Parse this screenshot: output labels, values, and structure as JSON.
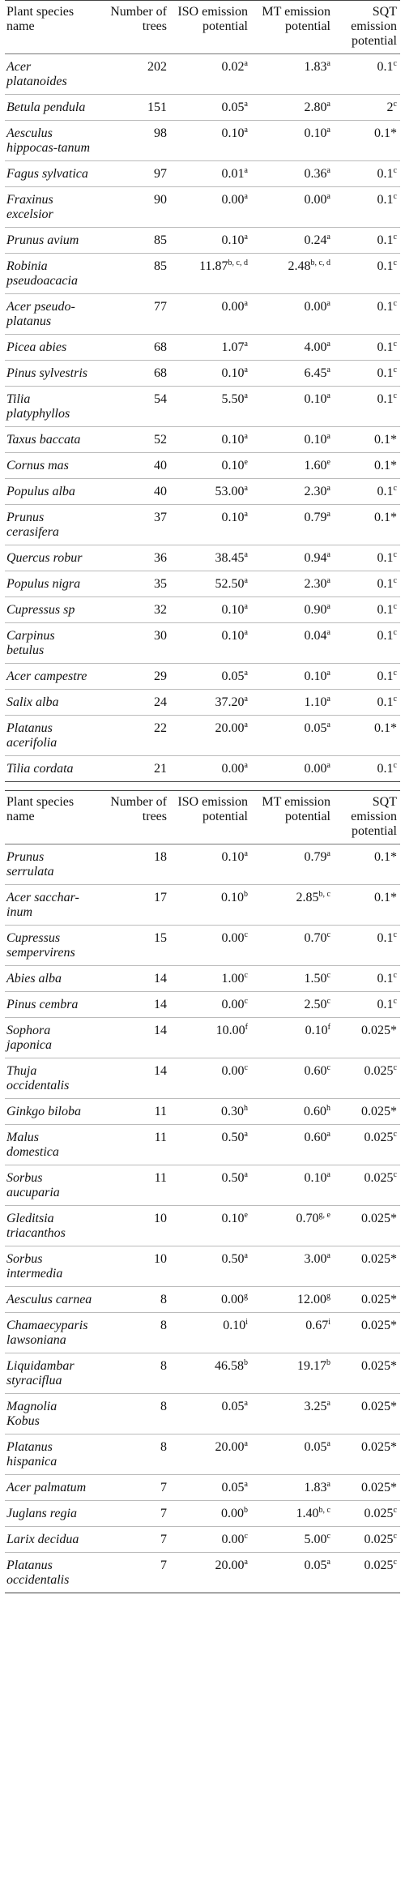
{
  "tables": [
    {
      "header": [
        "Plant species name",
        "Number of trees",
        "ISO emission potential",
        "MT emission potential",
        "SQT emission potential"
      ],
      "rows": [
        {
          "species": "Acer platanoides",
          "trees": "202",
          "iso": {
            "v": "0.02",
            "sup": "a"
          },
          "mt": {
            "v": "1.83",
            "sup": "a"
          },
          "sqt": {
            "v": "0.1",
            "sup": "c"
          }
        },
        {
          "species": "Betula pendula",
          "trees": "151",
          "iso": {
            "v": "0.05",
            "sup": "a"
          },
          "mt": {
            "v": "2.80",
            "sup": "a"
          },
          "sqt": {
            "v": "2",
            "sup": "c"
          }
        },
        {
          "species": "Aesculus hippocas-tanum",
          "trees": "98",
          "iso": {
            "v": "0.10",
            "sup": "a"
          },
          "mt": {
            "v": "0.10",
            "sup": "a"
          },
          "sqt": {
            "v": "0.1*"
          }
        },
        {
          "species": "Fagus sylvatica",
          "trees": "97",
          "iso": {
            "v": "0.01",
            "sup": "a"
          },
          "mt": {
            "v": "0.36",
            "sup": "a"
          },
          "sqt": {
            "v": "0.1",
            "sup": "c"
          }
        },
        {
          "species": "Fraxinus excelsior",
          "trees": "90",
          "iso": {
            "v": "0.00",
            "sup": "a"
          },
          "mt": {
            "v": "0.00",
            "sup": "a"
          },
          "sqt": {
            "v": "0.1",
            "sup": "c"
          }
        },
        {
          "species": "Prunus avium",
          "trees": "85",
          "iso": {
            "v": "0.10",
            "sup": "a"
          },
          "mt": {
            "v": "0.24",
            "sup": "a"
          },
          "sqt": {
            "v": "0.1",
            "sup": "c"
          }
        },
        {
          "species": "Robinia pseudoacacia",
          "trees": "85",
          "iso": {
            "v": "11.87",
            "sup": "b, c, d"
          },
          "mt": {
            "v": "2.48",
            "sup": "b, c, d"
          },
          "sqt": {
            "v": "0.1",
            "sup": "c"
          }
        },
        {
          "species": "Acer pseudo-platanus",
          "trees": "77",
          "iso": {
            "v": "0.00",
            "sup": "a"
          },
          "mt": {
            "v": "0.00",
            "sup": "a"
          },
          "sqt": {
            "v": "0.1",
            "sup": "c"
          }
        },
        {
          "species": "Picea abies",
          "trees": "68",
          "iso": {
            "v": "1.07",
            "sup": "a"
          },
          "mt": {
            "v": "4.00",
            "sup": "a"
          },
          "sqt": {
            "v": "0.1",
            "sup": "c"
          }
        },
        {
          "species": "Pinus sylvestris",
          "trees": "68",
          "iso": {
            "v": "0.10",
            "sup": "a"
          },
          "mt": {
            "v": "6.45",
            "sup": "a"
          },
          "sqt": {
            "v": "0.1",
            "sup": "c"
          }
        },
        {
          "species": "Tilia platyphyllos",
          "trees": "54",
          "iso": {
            "v": "5.50",
            "sup": "a"
          },
          "mt": {
            "v": "0.10",
            "sup": "a"
          },
          "sqt": {
            "v": "0.1",
            "sup": "c"
          }
        },
        {
          "species": "Taxus baccata",
          "trees": "52",
          "iso": {
            "v": "0.10",
            "sup": "a"
          },
          "mt": {
            "v": "0.10",
            "sup": "a"
          },
          "sqt": {
            "v": "0.1*"
          }
        },
        {
          "species": "Cornus mas",
          "trees": "40",
          "iso": {
            "v": "0.10",
            "sup": "e"
          },
          "mt": {
            "v": "1.60",
            "sup": "e"
          },
          "sqt": {
            "v": "0.1*"
          }
        },
        {
          "species": "Populus alba",
          "trees": "40",
          "iso": {
            "v": "53.00",
            "sup": "a"
          },
          "mt": {
            "v": "2.30",
            "sup": "a"
          },
          "sqt": {
            "v": "0.1",
            "sup": "c"
          }
        },
        {
          "species": "Prunus cerasifera",
          "trees": "37",
          "iso": {
            "v": "0.10",
            "sup": "a"
          },
          "mt": {
            "v": "0.79",
            "sup": "a"
          },
          "sqt": {
            "v": "0.1*"
          }
        },
        {
          "species": "Quercus robur",
          "trees": "36",
          "iso": {
            "v": "38.45",
            "sup": "a"
          },
          "mt": {
            "v": "0.94",
            "sup": "a"
          },
          "sqt": {
            "v": "0.1",
            "sup": "c"
          }
        },
        {
          "species": "Populus nigra",
          "trees": "35",
          "iso": {
            "v": "52.50",
            "sup": "a"
          },
          "mt": {
            "v": "2.30",
            "sup": "a"
          },
          "sqt": {
            "v": "0.1",
            "sup": "c"
          }
        },
        {
          "species": "Cupressus sp",
          "trees": "32",
          "iso": {
            "v": "0.10",
            "sup": "a"
          },
          "mt": {
            "v": "0.90",
            "sup": "a"
          },
          "sqt": {
            "v": "0.1",
            "sup": "c"
          }
        },
        {
          "species": "Carpinus betulus",
          "trees": "30",
          "iso": {
            "v": "0.10",
            "sup": "a"
          },
          "mt": {
            "v": "0.04",
            "sup": "a"
          },
          "sqt": {
            "v": "0.1",
            "sup": "c"
          }
        },
        {
          "species": "Acer campestre",
          "trees": "29",
          "iso": {
            "v": "0.05",
            "sup": "a"
          },
          "mt": {
            "v": "0.10",
            "sup": "a"
          },
          "sqt": {
            "v": "0.1",
            "sup": "c"
          }
        },
        {
          "species": "Salix alba",
          "trees": "24",
          "iso": {
            "v": "37.20",
            "sup": "a"
          },
          "mt": {
            "v": "1.10",
            "sup": "a"
          },
          "sqt": {
            "v": "0.1",
            "sup": "c"
          }
        },
        {
          "species": "Platanus acerifolia",
          "trees": "22",
          "iso": {
            "v": "20.00",
            "sup": "a"
          },
          "mt": {
            "v": "0.05",
            "sup": "a"
          },
          "sqt": {
            "v": "0.1*"
          }
        },
        {
          "species": "Tilia cordata",
          "trees": "21",
          "iso": {
            "v": "0.00",
            "sup": "a"
          },
          "mt": {
            "v": "0.00",
            "sup": "a"
          },
          "sqt": {
            "v": "0.1",
            "sup": "c"
          }
        }
      ]
    },
    {
      "header": [
        "Plant species name",
        "Number of trees",
        "ISO emission potential",
        "MT emission potential",
        "SQT emission potential"
      ],
      "rows": [
        {
          "species": "Prunus serrulata",
          "trees": "18",
          "iso": {
            "v": "0.10",
            "sup": "a"
          },
          "mt": {
            "v": "0.79",
            "sup": "a"
          },
          "sqt": {
            "v": "0.1*"
          }
        },
        {
          "species": "Acer sacchar-inum",
          "trees": "17",
          "iso": {
            "v": "0.10",
            "sup": "b"
          },
          "mt": {
            "v": "2.85",
            "sup": "b, c"
          },
          "sqt": {
            "v": "0.1*"
          }
        },
        {
          "species": "Cupressus sempervirens",
          "trees": "15",
          "iso": {
            "v": "0.00",
            "sup": "c"
          },
          "mt": {
            "v": "0.70",
            "sup": "c"
          },
          "sqt": {
            "v": "0.1",
            "sup": "c"
          }
        },
        {
          "species": "Abies alba",
          "trees": "14",
          "iso": {
            "v": "1.00",
            "sup": "c"
          },
          "mt": {
            "v": "1.50",
            "sup": "c"
          },
          "sqt": {
            "v": "0.1",
            "sup": "c"
          }
        },
        {
          "species": "Pinus cembra",
          "trees": "14",
          "iso": {
            "v": "0.00",
            "sup": "c"
          },
          "mt": {
            "v": "2.50",
            "sup": "c"
          },
          "sqt": {
            "v": "0.1",
            "sup": "c"
          }
        },
        {
          "species": "Sophora japonica",
          "trees": "14",
          "iso": {
            "v": "10.00",
            "sup": "f"
          },
          "mt": {
            "v": "0.10",
            "sup": "f"
          },
          "sqt": {
            "v": "0.025*"
          }
        },
        {
          "species": "Thuja occidentalis",
          "trees": "14",
          "iso": {
            "v": "0.00",
            "sup": "c"
          },
          "mt": {
            "v": "0.60",
            "sup": "c"
          },
          "sqt": {
            "v": "0.025",
            "sup": "c"
          }
        },
        {
          "species": "Ginkgo biloba",
          "trees": "11",
          "iso": {
            "v": "0.30",
            "sup": "h"
          },
          "mt": {
            "v": "0.60",
            "sup": "h"
          },
          "sqt": {
            "v": "0.025*"
          }
        },
        {
          "species": "Malus domestica",
          "trees": "11",
          "iso": {
            "v": "0.50",
            "sup": "a"
          },
          "mt": {
            "v": "0.60",
            "sup": "a"
          },
          "sqt": {
            "v": "0.025",
            "sup": "c"
          }
        },
        {
          "species": "Sorbus aucuparia",
          "trees": "11",
          "iso": {
            "v": "0.50",
            "sup": "a"
          },
          "mt": {
            "v": "0.10",
            "sup": "a"
          },
          "sqt": {
            "v": "0.025",
            "sup": "c"
          }
        },
        {
          "species": "Gleditsia triacanthos",
          "trees": "10",
          "iso": {
            "v": "0.10",
            "sup": "e"
          },
          "mt": {
            "v": "0.70",
            "sup": "g, e"
          },
          "sqt": {
            "v": "0.025*"
          }
        },
        {
          "species": "Sorbus intermedia",
          "trees": "10",
          "iso": {
            "v": "0.50",
            "sup": "a"
          },
          "mt": {
            "v": "3.00",
            "sup": "a"
          },
          "sqt": {
            "v": "0.025*"
          }
        },
        {
          "species": "Aesculus carnea",
          "trees": "8",
          "iso": {
            "v": "0.00",
            "sup": "g"
          },
          "mt": {
            "v": "12.00",
            "sup": "g"
          },
          "sqt": {
            "v": "0.025*"
          }
        },
        {
          "species": "Chamaecyparis lawsoniana",
          "trees": "8",
          "iso": {
            "v": "0.10",
            "sup": "i"
          },
          "mt": {
            "v": "0.67",
            "sup": "i"
          },
          "sqt": {
            "v": "0.025*"
          }
        },
        {
          "species": "Liquidambar styraciflua",
          "trees": "8",
          "iso": {
            "v": "46.58",
            "sup": "b"
          },
          "mt": {
            "v": "19.17",
            "sup": "b"
          },
          "sqt": {
            "v": "0.025*"
          }
        },
        {
          "species": "Magnolia Kobus",
          "trees": "8",
          "iso": {
            "v": "0.05",
            "sup": "a"
          },
          "mt": {
            "v": "3.25",
            "sup": "a"
          },
          "sqt": {
            "v": "0.025*"
          }
        },
        {
          "species": "Platanus hispanica",
          "trees": "8",
          "iso": {
            "v": "20.00",
            "sup": "a"
          },
          "mt": {
            "v": "0.05",
            "sup": "a"
          },
          "sqt": {
            "v": "0.025*"
          }
        },
        {
          "species": "Acer palmatum",
          "trees": "7",
          "iso": {
            "v": "0.05",
            "sup": "a"
          },
          "mt": {
            "v": "1.83",
            "sup": "a"
          },
          "sqt": {
            "v": "0.025*"
          }
        },
        {
          "species": "Juglans regia",
          "trees": "7",
          "iso": {
            "v": "0.00",
            "sup": "b"
          },
          "mt": {
            "v": "1.40",
            "sup": "b, c"
          },
          "sqt": {
            "v": "0.025",
            "sup": "c"
          }
        },
        {
          "species": "Larix decidua",
          "trees": "7",
          "iso": {
            "v": "0.00",
            "sup": "c"
          },
          "mt": {
            "v": "5.00",
            "sup": "c"
          },
          "sqt": {
            "v": "0.025",
            "sup": "c"
          }
        },
        {
          "species": "Platanus occidentalis",
          "trees": "7",
          "iso": {
            "v": "20.00",
            "sup": "a"
          },
          "mt": {
            "v": "0.05",
            "sup": "a"
          },
          "sqt": {
            "v": "0.025",
            "sup": "c"
          }
        }
      ]
    }
  ]
}
